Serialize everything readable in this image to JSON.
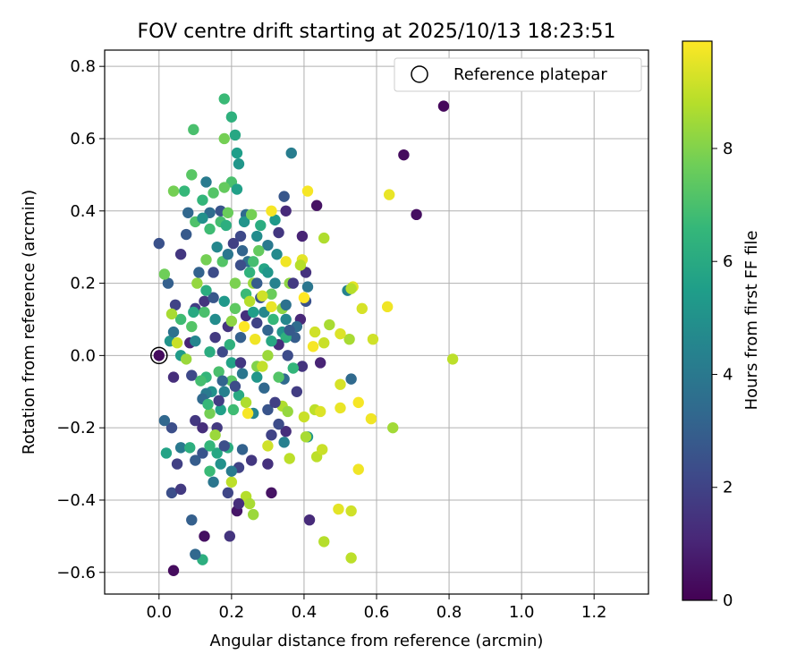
{
  "chart_data": {
    "type": "scatter",
    "title": "FOV centre drift starting at 2025/10/13 18:23:51",
    "xlabel": "Angular distance from reference (arcmin)",
    "ylabel": "Rotation from reference (arcmin)",
    "xlim": [
      -0.15,
      1.35
    ],
    "ylim": [
      -0.66,
      0.845
    ],
    "xticks": [
      0.0,
      0.2,
      0.4,
      0.6,
      0.8,
      1.0,
      1.2
    ],
    "xtick_labels": [
      "0.0",
      "0.2",
      "0.4",
      "0.6",
      "0.8",
      "1.0",
      "1.2"
    ],
    "yticks": [
      -0.6,
      -0.4,
      -0.2,
      0.0,
      0.2,
      0.4,
      0.6,
      0.8
    ],
    "ytick_labels": [
      "−0.6",
      "−0.4",
      "−0.2",
      "0.0",
      "0.2",
      "0.4",
      "0.6",
      "0.8"
    ],
    "grid": true,
    "legend": {
      "label": "Reference platepar",
      "placement": "top-right"
    },
    "reference_point": {
      "x": 0.0,
      "y": 0.0
    },
    "colorbar": {
      "label": "Hours from first FF file",
      "min": 0,
      "max": 9.9,
      "ticks": [
        0,
        2,
        4,
        6,
        8
      ],
      "tick_labels": [
        "0",
        "2",
        "4",
        "6",
        "8"
      ],
      "colormap": "viridis",
      "stops": [
        "#440154",
        "#482878",
        "#3e4989",
        "#31688e",
        "#26828e",
        "#1f9e89",
        "#35b779",
        "#6ece58",
        "#b5de2b",
        "#fde725"
      ]
    },
    "points": [
      [
        0.785,
        0.69,
        0.2
      ],
      [
        0.675,
        0.555,
        0.3
      ],
      [
        0.71,
        0.39,
        0.4
      ],
      [
        0.435,
        0.415,
        0.5
      ],
      [
        0.04,
        -0.595,
        0.3
      ],
      [
        0.125,
        -0.5,
        0.4
      ],
      [
        0.195,
        -0.5,
        1.5
      ],
      [
        0.215,
        -0.43,
        0.6
      ],
      [
        0.31,
        -0.38,
        0.5
      ],
      [
        0.415,
        -0.455,
        1.2
      ],
      [
        0.085,
        0.035,
        1.0
      ],
      [
        0.1,
        0.13,
        1.8
      ],
      [
        0.06,
        0.28,
        1.6
      ],
      [
        0.0,
        0.31,
        2.5
      ],
      [
        0.025,
        0.2,
        3.0
      ],
      [
        0.045,
        0.14,
        2.0
      ],
      [
        0.09,
        -0.055,
        2.2
      ],
      [
        0.04,
        -0.06,
        1.3
      ],
      [
        0.075,
        0.335,
        2.8
      ],
      [
        0.15,
        0.23,
        2.3
      ],
      [
        0.19,
        0.08,
        1.5
      ],
      [
        0.16,
        -0.2,
        1.7
      ],
      [
        0.12,
        -0.27,
        2.6
      ],
      [
        0.1,
        -0.29,
        2.9
      ],
      [
        0.05,
        -0.3,
        1.9
      ],
      [
        0.035,
        -0.38,
        2.4
      ],
      [
        0.06,
        -0.37,
        1.7
      ],
      [
        0.19,
        -0.38,
        2.1
      ],
      [
        0.255,
        -0.29,
        1.6
      ],
      [
        0.3,
        -0.3,
        1.4
      ],
      [
        0.31,
        -0.22,
        2.0
      ],
      [
        0.35,
        -0.21,
        1.3
      ],
      [
        0.38,
        -0.1,
        1.8
      ],
      [
        0.355,
        0.0,
        2.3
      ],
      [
        0.395,
        -0.03,
        1.5
      ],
      [
        0.39,
        0.1,
        1.1
      ],
      [
        0.38,
        0.08,
        3.5
      ],
      [
        0.365,
        0.56,
        4.2
      ],
      [
        0.345,
        0.44,
        2.7
      ],
      [
        0.35,
        0.4,
        1.2
      ],
      [
        0.33,
        0.34,
        1.6
      ],
      [
        0.395,
        0.33,
        1.0
      ],
      [
        0.405,
        0.23,
        1.4
      ],
      [
        0.41,
        0.19,
        3.9
      ],
      [
        0.405,
        0.15,
        2.5
      ],
      [
        0.375,
        0.05,
        2.9
      ],
      [
        0.345,
        -0.065,
        3.4
      ],
      [
        0.3,
        0.07,
        3.2
      ],
      [
        0.28,
        0.16,
        2.6
      ],
      [
        0.245,
        0.26,
        3.7
      ],
      [
        0.225,
        0.33,
        2.2
      ],
      [
        0.24,
        0.39,
        3.4
      ],
      [
        0.22,
        0.53,
        5.2
      ],
      [
        0.215,
        0.56,
        5.5
      ],
      [
        0.21,
        0.61,
        5.9
      ],
      [
        0.2,
        0.66,
        6.3
      ],
      [
        0.18,
        0.71,
        6.7
      ],
      [
        0.18,
        0.6,
        7.8
      ],
      [
        0.2,
        0.48,
        7.0
      ],
      [
        0.18,
        0.465,
        7.5
      ],
      [
        0.215,
        0.46,
        5.6
      ],
      [
        0.13,
        0.48,
        4.1
      ],
      [
        0.12,
        0.43,
        6.5
      ],
      [
        0.07,
        0.455,
        6.6
      ],
      [
        0.04,
        0.455,
        7.8
      ],
      [
        0.09,
        0.5,
        7.3
      ],
      [
        0.095,
        0.625,
        7.0
      ],
      [
        0.15,
        0.45,
        7.2
      ],
      [
        0.14,
        0.35,
        6.8
      ],
      [
        0.1,
        0.37,
        7.1
      ],
      [
        0.17,
        0.37,
        6.9
      ],
      [
        0.185,
        0.36,
        6.2
      ],
      [
        0.235,
        0.37,
        5.1
      ],
      [
        0.255,
        0.39,
        7.8
      ],
      [
        0.28,
        0.36,
        6.1
      ],
      [
        0.32,
        0.375,
        5.3
      ],
      [
        0.3,
        0.305,
        4.0
      ],
      [
        0.325,
        0.28,
        4.7
      ],
      [
        0.275,
        0.29,
        7.5
      ],
      [
        0.25,
        0.23,
        6.4
      ],
      [
        0.29,
        0.24,
        5.8
      ],
      [
        0.26,
        0.2,
        8.4
      ],
      [
        0.31,
        0.17,
        7.6
      ],
      [
        0.24,
        0.17,
        6.7
      ],
      [
        0.21,
        0.2,
        7.9
      ],
      [
        0.175,
        0.26,
        7.2
      ],
      [
        0.13,
        0.265,
        7.8
      ],
      [
        0.105,
        0.2,
        8.3
      ],
      [
        0.125,
        0.12,
        7.0
      ],
      [
        0.09,
        0.08,
        7.2
      ],
      [
        0.06,
        0.1,
        6.8
      ],
      [
        0.035,
        0.115,
        8.6
      ],
      [
        0.015,
        0.225,
        7.7
      ],
      [
        0.03,
        0.04,
        5.1
      ],
      [
        0.06,
        0.0,
        5.4
      ],
      [
        0.075,
        -0.01,
        8.4
      ],
      [
        0.1,
        0.04,
        4.5
      ],
      [
        0.14,
        0.01,
        6.1
      ],
      [
        0.165,
        -0.045,
        7.0
      ],
      [
        0.13,
        -0.06,
        6.5
      ],
      [
        0.145,
        -0.1,
        5.0
      ],
      [
        0.18,
        -0.1,
        4.3
      ],
      [
        0.2,
        -0.07,
        7.3
      ],
      [
        0.22,
        -0.11,
        6.0
      ],
      [
        0.24,
        -0.13,
        8.7
      ],
      [
        0.205,
        -0.15,
        6.8
      ],
      [
        0.17,
        -0.15,
        5.6
      ],
      [
        0.14,
        -0.16,
        7.8
      ],
      [
        0.155,
        -0.22,
        8.4
      ],
      [
        0.16,
        -0.27,
        5.9
      ],
      [
        0.14,
        -0.32,
        6.7
      ],
      [
        0.17,
        -0.3,
        5.0
      ],
      [
        0.15,
        -0.35,
        3.9
      ],
      [
        0.12,
        -0.565,
        6.2
      ],
      [
        0.1,
        -0.55,
        3.3
      ],
      [
        0.09,
        -0.455,
        3.0
      ],
      [
        0.14,
        -0.25,
        6.5
      ],
      [
        0.26,
        -0.16,
        4.5
      ],
      [
        0.27,
        -0.03,
        8.0
      ],
      [
        0.3,
        0.0,
        8.4
      ],
      [
        0.315,
        0.1,
        6.6
      ],
      [
        0.29,
        0.12,
        4.6
      ],
      [
        0.34,
        0.065,
        5.1
      ],
      [
        0.35,
        0.05,
        6.3
      ],
      [
        0.37,
        -0.035,
        6.5
      ],
      [
        0.33,
        -0.06,
        7.2
      ],
      [
        0.34,
        -0.14,
        8.7
      ],
      [
        0.355,
        -0.155,
        8.3
      ],
      [
        0.345,
        -0.24,
        4.3
      ],
      [
        0.36,
        -0.285,
        8.9
      ],
      [
        0.41,
        -0.225,
        5.2
      ],
      [
        0.405,
        -0.225,
        8.6
      ],
      [
        0.4,
        -0.17,
        9.1
      ],
      [
        0.43,
        -0.15,
        8.9
      ],
      [
        0.445,
        -0.155,
        9.4
      ],
      [
        0.435,
        -0.28,
        8.9
      ],
      [
        0.45,
        -0.26,
        9.1
      ],
      [
        0.455,
        -0.515,
        8.8
      ],
      [
        0.495,
        -0.425,
        9.5
      ],
      [
        0.53,
        -0.43,
        9.2
      ],
      [
        0.53,
        -0.56,
        8.9
      ],
      [
        0.55,
        -0.315,
        9.7
      ],
      [
        0.55,
        -0.13,
        9.8
      ],
      [
        0.585,
        -0.175,
        9.7
      ],
      [
        0.5,
        -0.145,
        9.6
      ],
      [
        0.5,
        -0.08,
        9.3
      ],
      [
        0.53,
        -0.065,
        3.4
      ],
      [
        0.525,
        0.045,
        8.6
      ],
      [
        0.59,
        0.045,
        9.2
      ],
      [
        0.645,
        -0.2,
        8.5
      ],
      [
        0.81,
        -0.01,
        8.9
      ],
      [
        0.63,
        0.135,
        9.7
      ],
      [
        0.56,
        0.13,
        9.3
      ],
      [
        0.535,
        0.19,
        9.5
      ],
      [
        0.52,
        0.18,
        4.4
      ],
      [
        0.53,
        0.185,
        8.8
      ],
      [
        0.5,
        0.06,
        9.4
      ],
      [
        0.47,
        0.085,
        8.6
      ],
      [
        0.455,
        0.035,
        9.1
      ],
      [
        0.43,
        0.065,
        9.2
      ],
      [
        0.425,
        0.025,
        9.8
      ],
      [
        0.445,
        -0.02,
        1.0
      ],
      [
        0.455,
        0.325,
        8.7
      ],
      [
        0.41,
        0.455,
        9.8
      ],
      [
        0.635,
        0.445,
        9.6
      ],
      [
        0.35,
        0.26,
        9.7
      ],
      [
        0.395,
        0.265,
        9.5
      ],
      [
        0.39,
        0.25,
        8.8
      ],
      [
        0.4,
        0.16,
        9.9
      ],
      [
        0.34,
        0.13,
        8.2
      ],
      [
        0.31,
        0.4,
        9.8
      ],
      [
        0.31,
        0.135,
        9.6
      ],
      [
        0.265,
        0.045,
        9.7
      ],
      [
        0.235,
        0.08,
        9.9
      ],
      [
        0.25,
        0.15,
        8.8
      ],
      [
        0.285,
        0.165,
        9.2
      ],
      [
        0.3,
        -0.25,
        9.2
      ],
      [
        0.285,
        -0.03,
        9.0
      ],
      [
        0.245,
        -0.16,
        9.8
      ],
      [
        0.24,
        -0.39,
        8.8
      ],
      [
        0.25,
        -0.41,
        8.6
      ],
      [
        0.26,
        -0.44,
        8.4
      ],
      [
        0.2,
        -0.35,
        8.9
      ],
      [
        0.22,
        -0.41,
        1.3
      ],
      [
        0.05,
        0.035,
        9.1
      ],
      [
        0.04,
        0.065,
        3.7
      ],
      [
        0.095,
        0.12,
        6.0
      ],
      [
        0.115,
        -0.07,
        6.9
      ],
      [
        0.13,
        -0.105,
        4.1
      ],
      [
        0.175,
        -0.07,
        3.2
      ],
      [
        0.2,
        -0.02,
        5.7
      ],
      [
        0.23,
        -0.05,
        3.9
      ],
      [
        0.27,
        -0.06,
        5.2
      ],
      [
        0.29,
        -0.09,
        3.3
      ],
      [
        0.3,
        -0.15,
        2.6
      ],
      [
        0.32,
        -0.13,
        1.9
      ],
      [
        0.33,
        -0.19,
        2.3
      ],
      [
        0.035,
        -0.2,
        2.4
      ],
      [
        0.015,
        -0.18,
        3.3
      ],
      [
        0.02,
        -0.27,
        5.7
      ],
      [
        0.06,
        -0.255,
        4.0
      ],
      [
        0.085,
        -0.255,
        6.2
      ],
      [
        0.1,
        -0.18,
        1.6
      ],
      [
        0.12,
        -0.12,
        3.4
      ],
      [
        0.11,
        0.23,
        3.1
      ],
      [
        0.125,
        0.15,
        1.5
      ],
      [
        0.155,
        0.1,
        4.8
      ],
      [
        0.155,
        0.05,
        1.7
      ],
      [
        0.175,
        0.01,
        2.2
      ],
      [
        0.195,
        0.03,
        6.3
      ],
      [
        0.225,
        0.05,
        3.0
      ],
      [
        0.24,
        0.11,
        1.4
      ],
      [
        0.26,
        0.12,
        5.5
      ],
      [
        0.27,
        0.09,
        2.0
      ],
      [
        0.21,
        0.13,
        7.4
      ],
      [
        0.18,
        0.15,
        5.3
      ],
      [
        0.15,
        0.16,
        2.7
      ],
      [
        0.13,
        0.18,
        6.1
      ],
      [
        0.16,
        0.3,
        4.6
      ],
      [
        0.19,
        0.28,
        3.9
      ],
      [
        0.205,
        0.31,
        1.9
      ],
      [
        0.225,
        0.25,
        2.4
      ],
      [
        0.26,
        0.26,
        6.9
      ],
      [
        0.27,
        0.33,
        4.8
      ],
      [
        0.23,
        0.29,
        3.2
      ],
      [
        0.17,
        0.4,
        2.6
      ],
      [
        0.19,
        0.395,
        7.6
      ],
      [
        0.14,
        0.395,
        3.5
      ],
      [
        0.08,
        0.395,
        3.3
      ],
      [
        0.12,
        0.38,
        5.0
      ],
      [
        0.27,
        0.2,
        2.9
      ],
      [
        0.3,
        0.23,
        5.2
      ],
      [
        0.36,
        0.2,
        8.2
      ],
      [
        0.37,
        0.2,
        1.7
      ],
      [
        0.32,
        0.2,
        4.4
      ],
      [
        0.35,
        0.14,
        3.7
      ],
      [
        0.35,
        0.1,
        4.6
      ],
      [
        0.36,
        0.07,
        2.8
      ],
      [
        0.33,
        0.03,
        1.3
      ],
      [
        0.31,
        0.04,
        5.9
      ],
      [
        0.2,
        0.095,
        8.2
      ],
      [
        0.225,
        -0.02,
        1.6
      ],
      [
        0.21,
        -0.085,
        2.3
      ],
      [
        0.165,
        -0.125,
        1.8
      ],
      [
        0.19,
        -0.255,
        6.1
      ],
      [
        0.23,
        -0.26,
        3.1
      ],
      [
        0.22,
        -0.31,
        2.0
      ],
      [
        0.2,
        -0.32,
        4.1
      ],
      [
        0.18,
        -0.25,
        2.4
      ],
      [
        0.135,
        -0.135,
        6.6
      ],
      [
        0.12,
        -0.2,
        1.3
      ]
    ]
  }
}
